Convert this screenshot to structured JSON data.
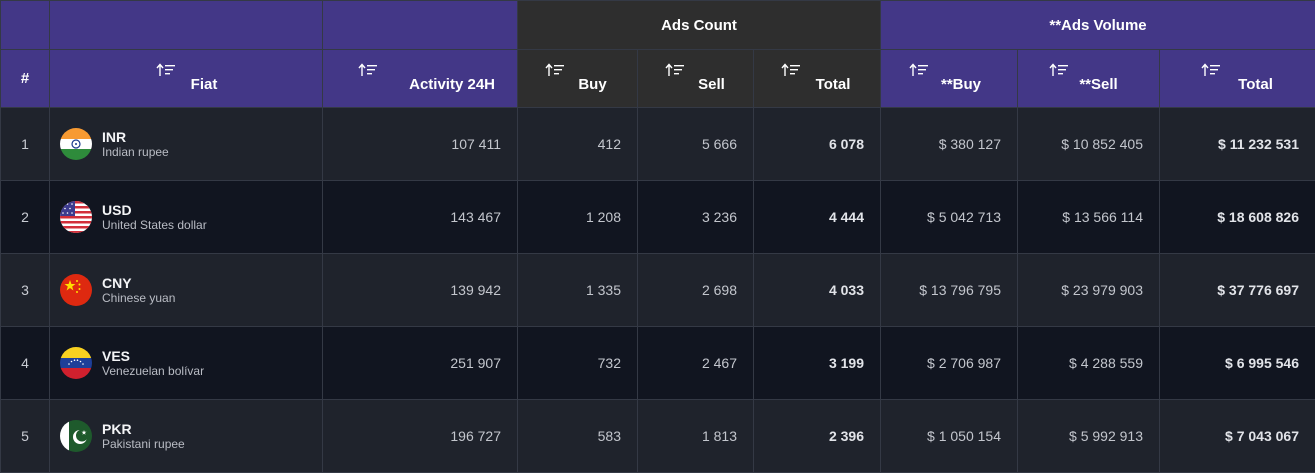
{
  "header": {
    "group_ads_count": "Ads Count",
    "group_ads_volume": "**Ads Volume",
    "columns": {
      "index": "#",
      "fiat": "Fiat",
      "activity": "Activity 24H",
      "buy": "Buy",
      "sell": "Sell",
      "total": "Total",
      "vol_buy": "**Buy",
      "vol_sell": "**Sell",
      "vol_total": "Total"
    }
  },
  "colors": {
    "header_purple": "#433787",
    "header_dark": "#2e2e2e",
    "row_light": "#1f232c",
    "row_dark": "#111520"
  },
  "rows": [
    {
      "index": "1",
      "code": "INR",
      "name": "Indian rupee",
      "activity": "107 411",
      "buy": "412",
      "sell": "5 666",
      "total": "6 078",
      "vol_buy": "$ 380 127",
      "vol_sell": "$ 10 852 405",
      "vol_total": "$ 11 232 531",
      "flag": "india-flag-icon"
    },
    {
      "index": "2",
      "code": "USD",
      "name": "United States dollar",
      "activity": "143 467",
      "buy": "1 208",
      "sell": "3 236",
      "total": "4 444",
      "vol_buy": "$ 5 042 713",
      "vol_sell": "$ 13 566 114",
      "vol_total": "$ 18 608 826",
      "flag": "usa-flag-icon"
    },
    {
      "index": "3",
      "code": "CNY",
      "name": "Chinese yuan",
      "activity": "139 942",
      "buy": "1 335",
      "sell": "2 698",
      "total": "4 033",
      "vol_buy": "$ 13 796 795",
      "vol_sell": "$ 23 979 903",
      "vol_total": "$ 37 776 697",
      "flag": "china-flag-icon"
    },
    {
      "index": "4",
      "code": "VES",
      "name": "Venezuelan bolívar",
      "activity": "251 907",
      "buy": "732",
      "sell": "2 467",
      "total": "3 199",
      "vol_buy": "$ 2 706 987",
      "vol_sell": "$ 4 288 559",
      "vol_total": "$ 6 995 546",
      "flag": "venezuela-flag-icon"
    },
    {
      "index": "5",
      "code": "PKR",
      "name": "Pakistani rupee",
      "activity": "196 727",
      "buy": "583",
      "sell": "1 813",
      "total": "2 396",
      "vol_buy": "$ 1 050 154",
      "vol_sell": "$ 5 992 913",
      "vol_total": "$ 7 043 067",
      "flag": "pakistan-flag-icon"
    }
  ]
}
